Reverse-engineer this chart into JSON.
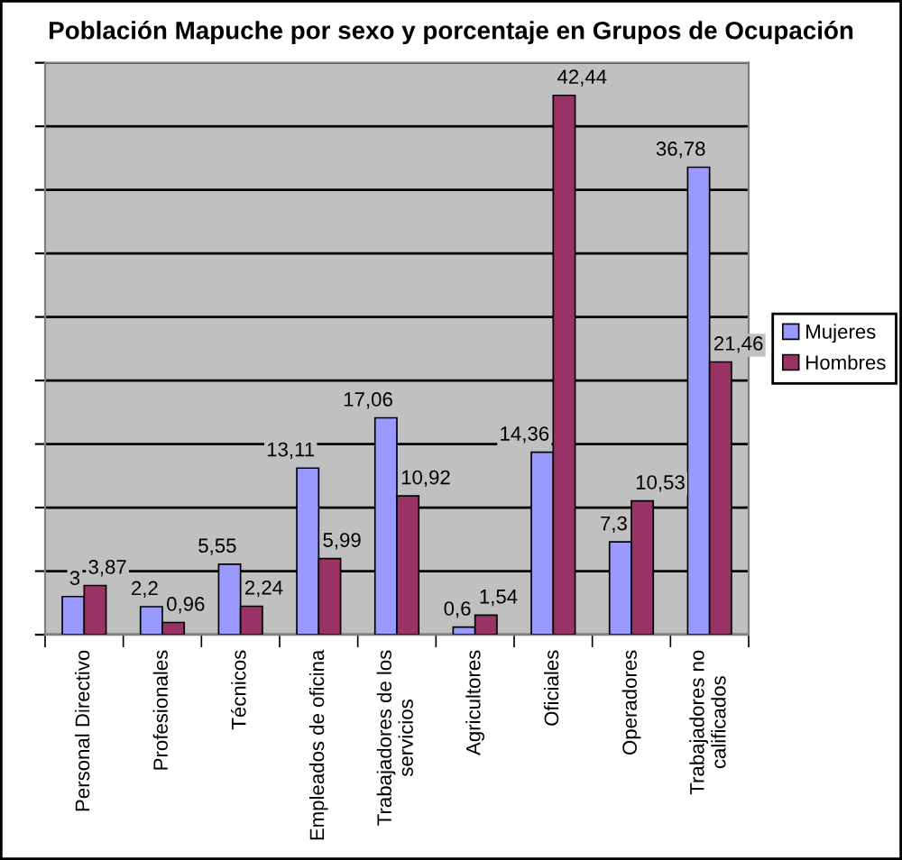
{
  "chart_data": {
    "type": "bar",
    "title": "Población Mapuche por sexo y porcentaje en Grupos de Ocupación",
    "categories": [
      "Personal Directivo",
      "Profesionales",
      "Técnicos",
      "Empleados de oficina",
      "Trabajadores de los\nservicios",
      "Agricultores",
      "Oficiales",
      "Operadores",
      "Trabajadores no\ncalificados"
    ],
    "series": [
      {
        "name": "Mujeres",
        "color": "#9999ff",
        "values": [
          3,
          2.2,
          5.55,
          13.11,
          17.06,
          0.6,
          14.36,
          7.3,
          36.78
        ],
        "value_labels": [
          "3",
          "2,2",
          "5,55",
          "13,11",
          "17,06",
          "0,6",
          "14,36",
          "7,3",
          "36,78"
        ]
      },
      {
        "name": "Hombres",
        "color": "#993366",
        "values": [
          3.87,
          0.96,
          2.24,
          5.99,
          10.92,
          1.54,
          42.44,
          10.53,
          21.46
        ],
        "value_labels": [
          "3,87",
          "0,96",
          "2,24",
          "5,99",
          "10,92",
          "1,54",
          "42,44",
          "10,53",
          "21,46"
        ]
      }
    ],
    "ylim": [
      0,
      45
    ],
    "yticks": [
      {
        "value": 0,
        "label": null
      },
      {
        "value": 5,
        "label": null
      },
      {
        "value": 10,
        "label": null
      },
      {
        "value": 15,
        "label": null
      },
      {
        "value": 20,
        "label": null
      },
      {
        "value": 25,
        "label": null
      },
      {
        "value": 30,
        "label": null
      },
      {
        "value": 35,
        "label": null
      },
      {
        "value": 40,
        "label": null
      },
      {
        "value": 45,
        "label": null
      }
    ],
    "grid": "y",
    "legend": "right",
    "tick_labels": "x"
  }
}
